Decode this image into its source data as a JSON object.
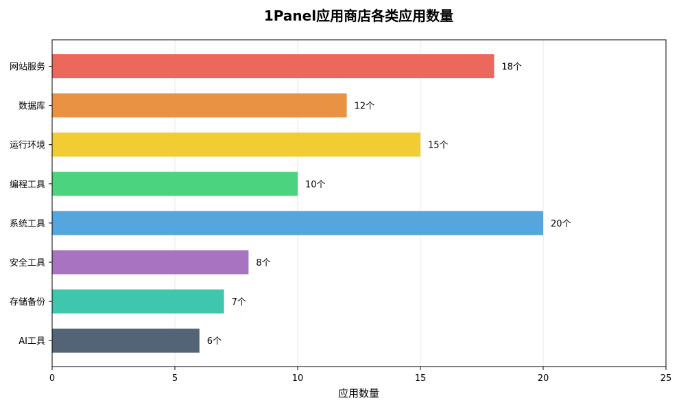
{
  "chart_data": {
    "type": "bar",
    "orientation": "horizontal",
    "title": "1Panel应用商店各类应用数量",
    "xlabel": "应用数量",
    "ylabel": "",
    "categories": [
      "网站服务",
      "数据库",
      "运行环境",
      "编程工具",
      "系统工具",
      "安全工具",
      "存储备份",
      "AI工具"
    ],
    "values": [
      18,
      12,
      15,
      10,
      20,
      8,
      7,
      6
    ],
    "value_labels": [
      "18个",
      "12个",
      "15个",
      "10个",
      "20个",
      "8个",
      "7个",
      "6个"
    ],
    "colors": [
      "#ec685d",
      "#e99244",
      "#f2cc33",
      "#4cd37f",
      "#55a5df",
      "#a873c0",
      "#3fc7ad",
      "#536476"
    ],
    "xlim": [
      0,
      25
    ],
    "xticks": [
      0,
      5,
      10,
      15,
      20,
      25
    ],
    "grid": "vertical",
    "legend": "none"
  }
}
